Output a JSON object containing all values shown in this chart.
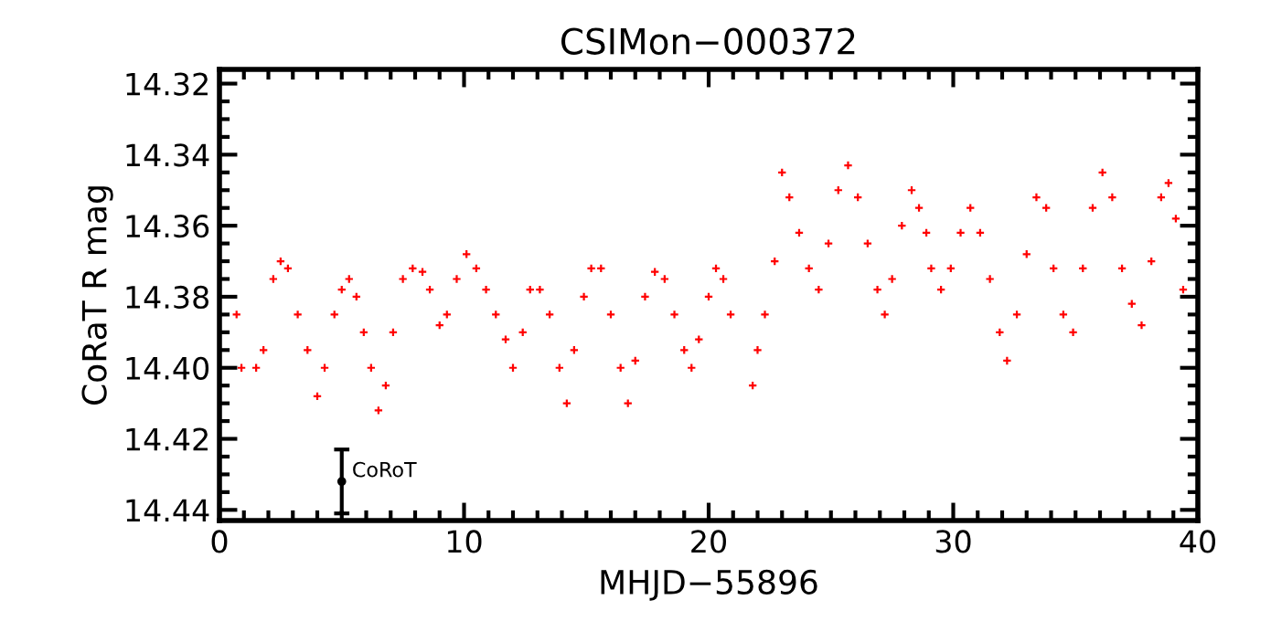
{
  "chart_data": {
    "type": "scatter",
    "title": "CSIMon−000372",
    "xlabel": "MHJD−55896",
    "ylabel": "CoRaT R mag",
    "xlim": [
      0,
      40
    ],
    "xticks": [
      0,
      10,
      20,
      30,
      40
    ],
    "ylim": [
      14.443,
      14.316
    ],
    "yticks": [
      14.32,
      14.34,
      14.36,
      14.38,
      {
        "value": 14.4,
        "label": "14.40"
      },
      14.42,
      14.44
    ],
    "marker": "cross",
    "series": [
      {
        "color": "#ff0000",
        "x": [
          0.7,
          0.9,
          1.5,
          1.8,
          2.2,
          2.5,
          2.8,
          3.2,
          3.6,
          4.0,
          4.3,
          4.7,
          5.0,
          5.3,
          5.6,
          5.9,
          6.2,
          6.5,
          6.8,
          7.1,
          7.5,
          7.9,
          8.3,
          8.6,
          9.0,
          9.3,
          9.7,
          10.1,
          10.5,
          10.9,
          11.3,
          11.7,
          12.0,
          12.4,
          12.7,
          13.1,
          13.5,
          13.9,
          14.2,
          14.5,
          14.9,
          15.2,
          15.6,
          16.0,
          16.4,
          16.7,
          17.0,
          17.4,
          17.8,
          18.2,
          18.6,
          19.0,
          19.3,
          19.6,
          20.0,
          20.3,
          20.6,
          20.9,
          21.8,
          22.0,
          22.3,
          22.7,
          23.0,
          23.3,
          23.7,
          24.1,
          24.5,
          24.9,
          25.3,
          25.7,
          26.1,
          26.5,
          26.9,
          27.2,
          27.5,
          27.9,
          28.3,
          28.6,
          28.9,
          29.1,
          29.5,
          29.9,
          30.3,
          30.7,
          31.1,
          31.5,
          31.9,
          32.2,
          32.6,
          33.0,
          33.4,
          33.8,
          34.1,
          34.5,
          34.9,
          35.3,
          35.7,
          36.1,
          36.5,
          36.9,
          37.3,
          37.7,
          38.1,
          38.5,
          38.8,
          39.1,
          39.4
        ],
        "values": [
          14.385,
          14.4,
          14.4,
          14.395,
          14.375,
          14.37,
          14.372,
          14.385,
          14.395,
          14.408,
          14.4,
          14.385,
          14.378,
          14.375,
          14.38,
          14.39,
          14.4,
          14.412,
          14.405,
          14.39,
          14.375,
          14.372,
          14.373,
          14.378,
          14.388,
          14.385,
          14.375,
          14.368,
          14.372,
          14.378,
          14.385,
          14.392,
          14.4,
          14.39,
          14.378,
          14.378,
          14.385,
          14.4,
          14.41,
          14.395,
          14.38,
          14.372,
          14.372,
          14.385,
          14.4,
          14.41,
          14.398,
          14.38,
          14.373,
          14.375,
          14.385,
          14.395,
          14.4,
          14.392,
          14.38,
          14.372,
          14.375,
          14.385,
          14.405,
          14.395,
          14.385,
          14.37,
          14.345,
          14.352,
          14.362,
          14.372,
          14.378,
          14.365,
          14.35,
          14.343,
          14.352,
          14.365,
          14.378,
          14.385,
          14.375,
          14.36,
          14.35,
          14.355,
          14.362,
          14.372,
          14.378,
          14.372,
          14.362,
          14.355,
          14.362,
          14.375,
          14.39,
          14.398,
          14.385,
          14.368,
          14.352,
          14.355,
          14.372,
          14.385,
          14.39,
          14.372,
          14.355,
          14.345,
          14.352,
          14.372,
          14.382,
          14.388,
          14.37,
          14.352,
          14.348,
          14.358,
          14.378
        ]
      },
      {
        "name": "CoRoT",
        "color": "#000000",
        "marker": "circle",
        "x": [
          5
        ],
        "values": [
          14.432
        ],
        "errors": [
          0.009
        ]
      }
    ]
  }
}
